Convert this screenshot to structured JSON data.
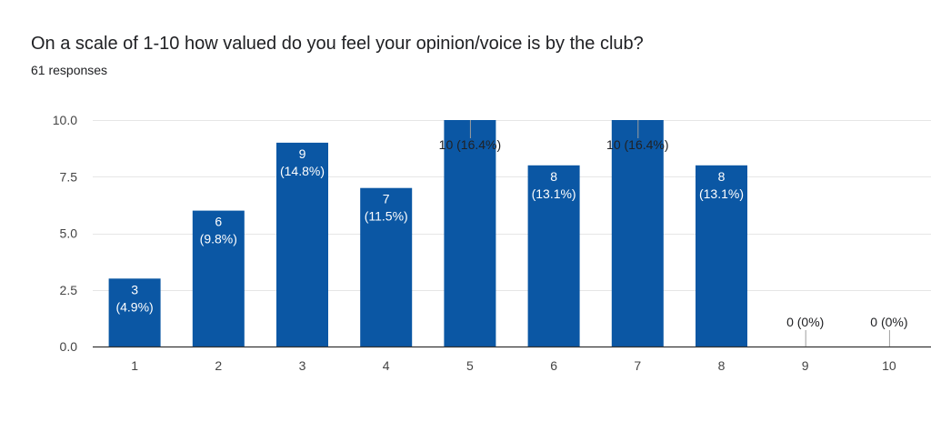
{
  "header": {
    "title": "On a scale of 1-10 how valued do you feel your opinion/voice is by the club?",
    "responses": "61 responses"
  },
  "colors": {
    "bar": "#0b57a4",
    "grid": "#e6e6e6",
    "axis": "#333333",
    "label_inside": "#ffffff",
    "label_outside": "#202124",
    "leader": "#9e9e9e"
  },
  "chart_data": {
    "type": "bar",
    "title": "On a scale of 1-10 how valued do you feel your opinion/voice is by the club?",
    "categories": [
      "1",
      "2",
      "3",
      "4",
      "5",
      "6",
      "7",
      "8",
      "9",
      "10"
    ],
    "values": [
      3,
      6,
      9,
      7,
      10,
      8,
      10,
      8,
      0,
      0
    ],
    "data_labels": [
      "3 (4.9%)",
      "6 (9.8%)",
      "9 (14.8%)",
      "7 (11.5%)",
      "10 (16.4%)",
      "8 (13.1%)",
      "10 (16.4%)",
      "8 (13.1%)",
      "0 (0%)",
      "0 (0%)"
    ],
    "yticks": [
      "0.0",
      "2.5",
      "5.0",
      "7.5",
      "10.0"
    ],
    "ytick_values": [
      0,
      2.5,
      5,
      7.5,
      10
    ],
    "ylim": [
      0,
      10
    ],
    "xlabel": "",
    "ylabel": "",
    "grid": true,
    "legend": "none"
  }
}
